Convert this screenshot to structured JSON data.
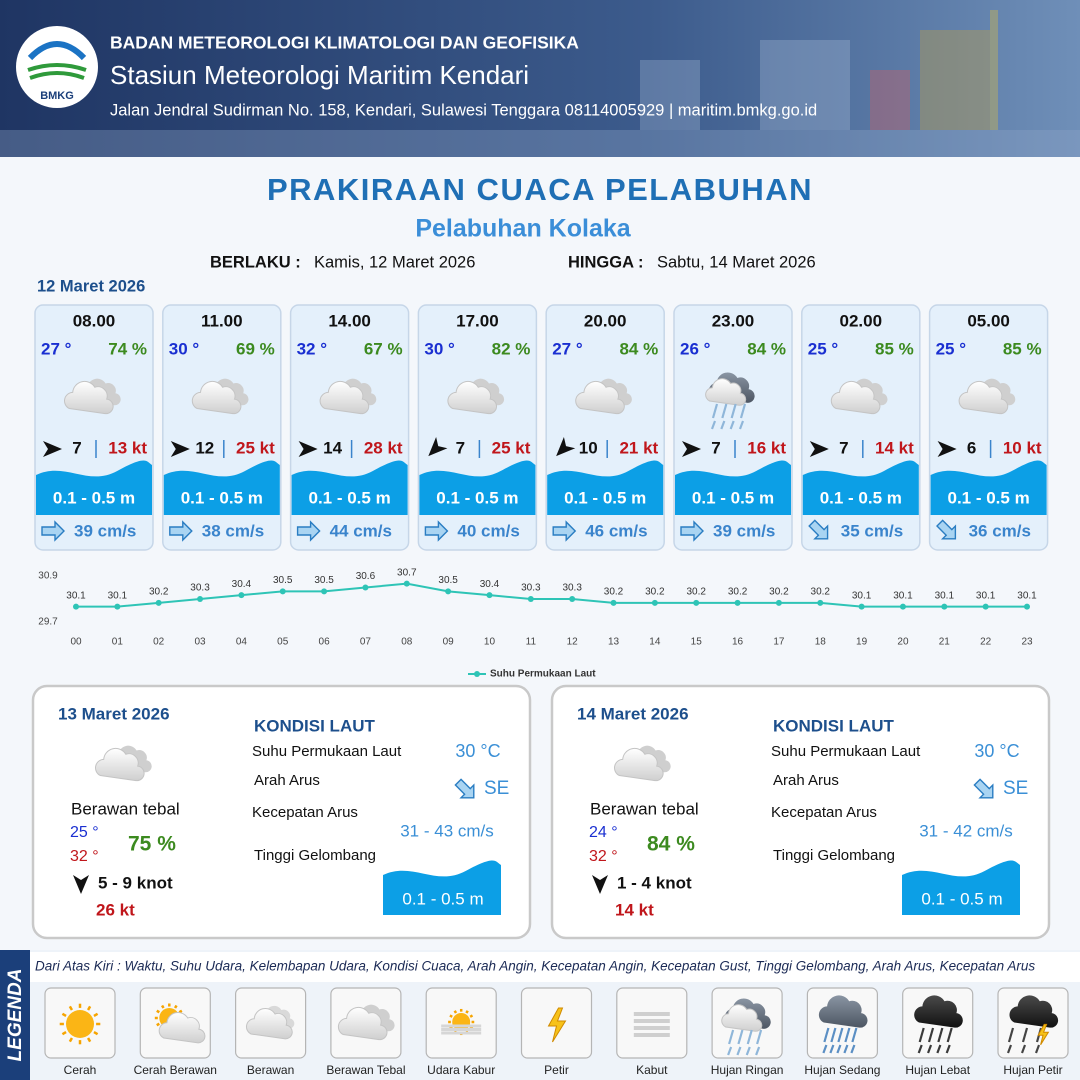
{
  "header": {
    "logo": "BMKG",
    "org": "BADAN METEOROLOGI KLIMATOLOGI DAN GEOFISIKA",
    "station": "Stasiun Meteorologi Maritim Kendari",
    "address": "Jalan Jendral Sudirman No. 158, Kendari, Sulawesi Tenggara  08114005929 | maritim.bmkg.go.id"
  },
  "title": "PRAKIRAAN CUACA PELABUHAN",
  "subtitle": "Pelabuhan Kolaka",
  "validity": {
    "from_label": "BERLAKU :",
    "from": "Kamis, 12 Maret 2026",
    "to_label": "HINGGA :",
    "to": "Sabtu, 14 Maret 2026"
  },
  "day1": {
    "date": "12 Maret 2026",
    "cards": [
      {
        "time": "08.00",
        "temp": "27 °",
        "humidity": "74 %",
        "wind": "7",
        "gust": "13 kt",
        "wave": "0.1 - 0.5 m",
        "current": "39 cm/s"
      },
      {
        "time": "11.00",
        "temp": "30 °",
        "humidity": "69 %",
        "wind": "12",
        "gust": "25 kt",
        "wave": "0.1 - 0.5 m",
        "current": "38 cm/s"
      },
      {
        "time": "14.00",
        "temp": "32 °",
        "humidity": "67 %",
        "wind": "14",
        "gust": "28 kt",
        "wave": "0.1 - 0.5 m",
        "current": "44 cm/s"
      },
      {
        "time": "17.00",
        "temp": "30 °",
        "humidity": "82 %",
        "wind": "7",
        "gust": "25 kt",
        "wave": "0.1 - 0.5 m",
        "current": "40 cm/s"
      },
      {
        "time": "20.00",
        "temp": "27 °",
        "humidity": "84 %",
        "wind": "10",
        "gust": "21 kt",
        "wave": "0.1 - 0.5 m",
        "current": "46 cm/s"
      },
      {
        "time": "23.00",
        "temp": "26 °",
        "humidity": "84 %",
        "wind": "7",
        "gust": "16 kt",
        "wave": "0.1 - 0.5 m",
        "current": "39 cm/s"
      },
      {
        "time": "02.00",
        "temp": "25 °",
        "humidity": "85 %",
        "wind": "7",
        "gust": "14 kt",
        "wave": "0.1 - 0.5 m",
        "current": "35 cm/s"
      },
      {
        "time": "05.00",
        "temp": "25 °",
        "humidity": "85 %",
        "wind": "6",
        "gust": "10 kt",
        "wave": "0.1 - 0.5 m",
        "current": "36 cm/s"
      }
    ]
  },
  "chart_data": {
    "type": "line",
    "categories": [
      "00",
      "01",
      "02",
      "03",
      "04",
      "05",
      "06",
      "07",
      "08",
      "09",
      "10",
      "11",
      "12",
      "13",
      "14",
      "15",
      "16",
      "17",
      "18",
      "19",
      "20",
      "21",
      "22",
      "23"
    ],
    "series": [
      {
        "name": "Suhu Permukaan Laut",
        "color": "#2ec4b6",
        "values": [
          30.1,
          30.1,
          30.2,
          30.3,
          30.4,
          30.5,
          30.5,
          30.6,
          30.7,
          30.5,
          30.4,
          30.3,
          30.3,
          30.2,
          30.2,
          30.2,
          30.2,
          30.2,
          30.2,
          30.1,
          30.1,
          30.1,
          30.1,
          30.1
        ]
      }
    ],
    "ylim": [
      29.7,
      30.9
    ],
    "yticks": [
      29.7,
      30.9
    ]
  },
  "days": [
    {
      "date": "13 Maret 2026",
      "condition": "Berawan tebal",
      "temp_min": "25 °",
      "temp_max": "32 °",
      "humidity": "75 %",
      "wind": "5  - 9 knot",
      "gust": "26 kt",
      "sea_title": "KONDISI LAUT",
      "sst_label": "Suhu Permukaan Laut",
      "sst": "30 °C",
      "dir_label": "Arah Arus",
      "dir": "SE",
      "speed_label": "Kecepatan Arus",
      "speed": "31 - 43 cm/s",
      "wave_label": "Tinggi Gelombang",
      "wave": "0.1 - 0.5 m"
    },
    {
      "date": "14 Maret 2026",
      "condition": "Berawan tebal",
      "temp_min": "24 °",
      "temp_max": "32 °",
      "humidity": "84 %",
      "wind": "1  - 4 knot",
      "gust": "14 kt",
      "sea_title": "KONDISI LAUT",
      "sst_label": "Suhu Permukaan Laut",
      "sst": "30 °C",
      "dir_label": "Arah Arus",
      "dir": "SE",
      "speed_label": "Kecepatan Arus",
      "speed": "31  - 42 cm/s",
      "wave_label": "Tinggi Gelombang",
      "wave": "0.1 - 0.5 m"
    }
  ],
  "legend": {
    "title": "LEGENDA",
    "description": "Dari Atas Kiri : Waktu, Suhu Udara, Kelembapan Udara, Kondisi Cuaca, Arah Angin, Kecepatan Angin, Kecepatan Gust, Tinggi Gelombang, Arah Arus, Kecepatan Arus",
    "items": [
      "Cerah",
      "Cerah Berawan",
      "Berawan",
      "Berawan Tebal",
      "Udara Kabur",
      "Petir",
      "Kabut",
      "Hujan Ringan",
      "Hujan Sedang",
      "Hujan Lebat",
      "Hujan Petir"
    ]
  }
}
